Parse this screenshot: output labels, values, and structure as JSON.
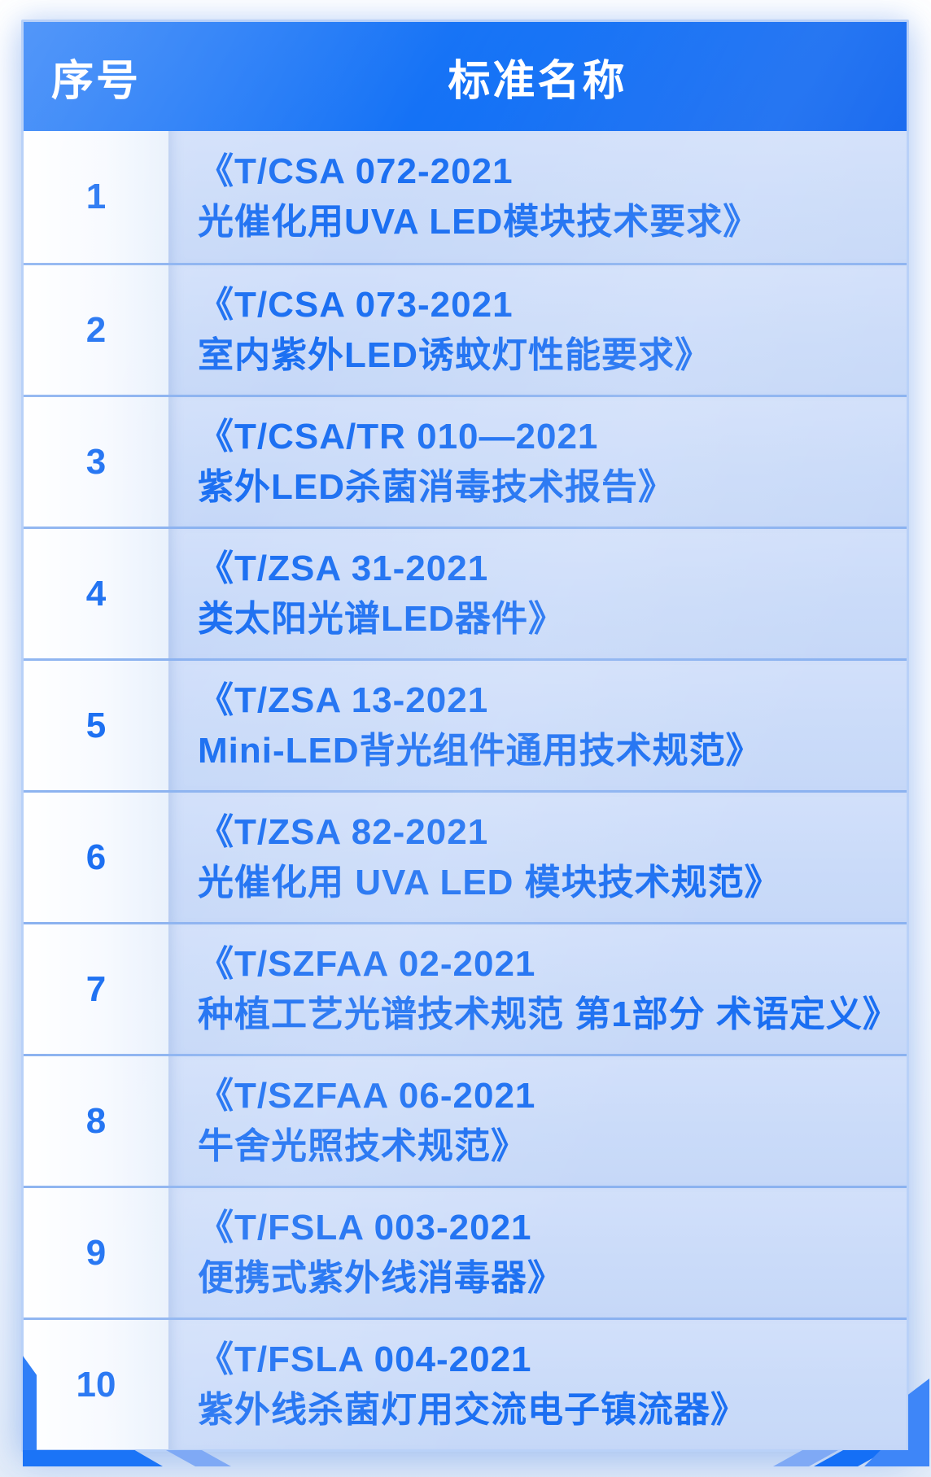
{
  "table": {
    "headers": [
      "序号",
      "标准名称"
    ],
    "rows": [
      {
        "index": "1",
        "code": "《T/CSA 072-2021",
        "title": "光催化用UVA LED模块技术要求》"
      },
      {
        "index": "2",
        "code": "《T/CSA 073-2021",
        "title": "室内紫外LED诱蚊灯性能要求》"
      },
      {
        "index": "3",
        "code": "《T/CSA/TR 010—2021",
        "title": "紫外LED杀菌消毒技术报告》"
      },
      {
        "index": "4",
        "code": "《T/ZSA 31-2021",
        "title": "类太阳光谱LED器件》"
      },
      {
        "index": "5",
        "code": "《T/ZSA 13-2021",
        "title": "Mini-LED背光组件通用技术规范》"
      },
      {
        "index": "6",
        "code": "《T/ZSA 82-2021",
        "title": "光催化用 UVA LED 模块技术规范》"
      },
      {
        "index": "7",
        "code": "《T/SZFAA 02-2021",
        "title": "种植工艺光谱技术规范 第1部分 术语定义》"
      },
      {
        "index": "8",
        "code": "《T/SZFAA 06-2021",
        "title": "牛舍光照技术规范》"
      },
      {
        "index": "9",
        "code": "《T/FSLA 003-2021",
        "title": "便携式紫外线消毒器》"
      },
      {
        "index": "10",
        "code": "《T/FSLA 004-2021",
        "title": "紫外线杀菌灯用交流电子镇流器》"
      }
    ]
  },
  "colors": {
    "header_bg": "#1170f6",
    "header_text": "#ffffff",
    "body_text": "#1b6ff2",
    "name_cell_bg": "#cadbf9",
    "index_cell_bg": "#f5f9fe",
    "row_divider": "#8bb2f0",
    "card_edge": "#b9d1f8",
    "pedestal_dark": "#1b74f7",
    "pedestal_medium": "#3e86f8",
    "pedestal_light": "#7fa9f5"
  },
  "chart_data": {
    "type": "table",
    "title": "",
    "columns": [
      "序号",
      "标准名称"
    ],
    "rows": [
      [
        "1",
        "《T/CSA 072-2021 光催化用UVA LED模块技术要求》"
      ],
      [
        "2",
        "《T/CSA 073-2021 室内紫外LED诱蚊灯性能要求》"
      ],
      [
        "3",
        "《T/CSA/TR 010—2021 紫外LED杀菌消毒技术报告》"
      ],
      [
        "4",
        "《T/ZSA 31-2021 类太阳光谱LED器件》"
      ],
      [
        "5",
        "《T/ZSA 13-2021 Mini-LED背光组件通用技术规范》"
      ],
      [
        "6",
        "《T/ZSA 82-2021 光催化用 UVA LED 模块技术规范》"
      ],
      [
        "7",
        "《T/SZFAA 02-2021 种植工艺光谱技术规范 第1部分 术语定义》"
      ],
      [
        "8",
        "《T/SZFAA 06-2021 牛舍光照技术规范》"
      ],
      [
        "9",
        "《T/FSLA 003-2021 便携式紫外线消毒器》"
      ],
      [
        "10",
        "《T/FSLA 004-2021 紫外线杀菌灯用交流电子镇流器》"
      ]
    ]
  }
}
